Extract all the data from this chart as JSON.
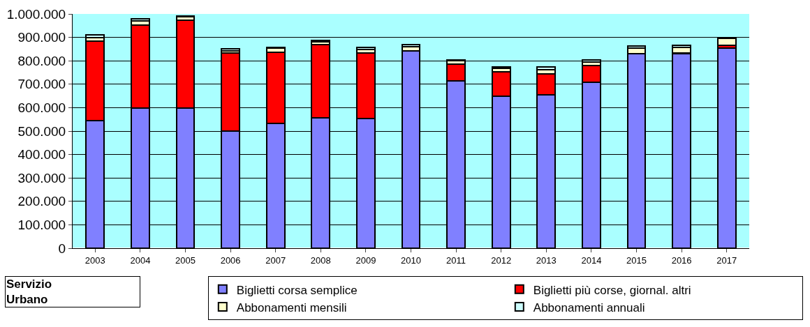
{
  "chart_data": {
    "type": "bar",
    "stacked": true,
    "categories": [
      "2003",
      "2004",
      "2005",
      "2006",
      "2007",
      "2008",
      "2009",
      "2010",
      "2011",
      "2012",
      "2013",
      "2014",
      "2015",
      "2016",
      "2017"
    ],
    "series": [
      {
        "name": "Biglietti corsa semplice",
        "color": "#8080ff",
        "values": [
          545000,
          598000,
          598000,
          500000,
          533000,
          558000,
          553000,
          843000,
          713000,
          650000,
          656000,
          707000,
          830000,
          830000,
          855000
        ]
      },
      {
        "name": "Biglietti più corse, giornal. altri",
        "color": "#ff0000",
        "values": [
          340000,
          355000,
          375000,
          333000,
          304000,
          312000,
          279000,
          0,
          73000,
          102000,
          89000,
          73000,
          0,
          3000,
          10000
        ]
      },
      {
        "name": "Abbonamenti mensili",
        "color": "#ffffcc",
        "values": [
          15000,
          17000,
          14000,
          10000,
          16000,
          10000,
          16000,
          17000,
          14000,
          15000,
          18000,
          16000,
          23000,
          23000,
          32000
        ]
      },
      {
        "name": "Abbonamenti annuali",
        "color": "#ccffff",
        "values": [
          10000,
          10000,
          5000,
          7000,
          3000,
          8000,
          9000,
          8000,
          5000,
          6000,
          10000,
          7000,
          9000,
          10000,
          3000
        ]
      }
    ],
    "ylim": [
      0,
      1000000
    ],
    "yticks": [
      {
        "value": 0,
        "label": "0"
      },
      {
        "value": 100000,
        "label": "100.000"
      },
      {
        "value": 200000,
        "label": "200.000"
      },
      {
        "value": 300000,
        "label": "300.000"
      },
      {
        "value": 400000,
        "label": "400.000"
      },
      {
        "value": 500000,
        "label": "500.000"
      },
      {
        "value": 600000,
        "label": "600.000"
      },
      {
        "value": 700000,
        "label": "700.000"
      },
      {
        "value": 800000,
        "label": "800.000"
      },
      {
        "value": 900000,
        "label": "900.000"
      },
      {
        "value": 1000000,
        "label": "1.000.000"
      }
    ],
    "grid": "y",
    "legend": "bottom",
    "annotations": [
      "Servizio\nUrbano"
    ]
  }
}
